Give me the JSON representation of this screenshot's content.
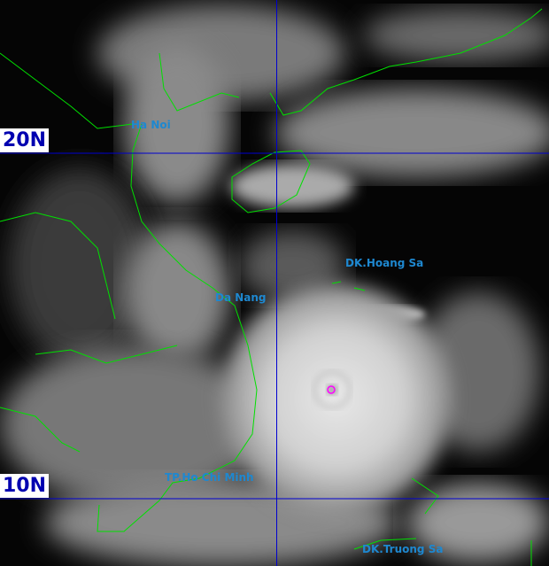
{
  "map": {
    "type": "satellite-infrared-image",
    "colors": {
      "coastline": "#00e000",
      "grid": "#0000d0",
      "city_label": "#1e88d0",
      "lat_label_text": "#0000b0",
      "lat_label_bg": "#ffffff",
      "storm_center": "#ff00ff"
    },
    "latitude_labels": [
      "20N",
      "10N"
    ],
    "places": [
      {
        "name": "Ha Noi"
      },
      {
        "name": "Da Nang"
      },
      {
        "name": "DK.Hoang Sa"
      },
      {
        "name": "TP.Ho Chi Minh"
      },
      {
        "name": "DK.Truong Sa"
      }
    ]
  }
}
